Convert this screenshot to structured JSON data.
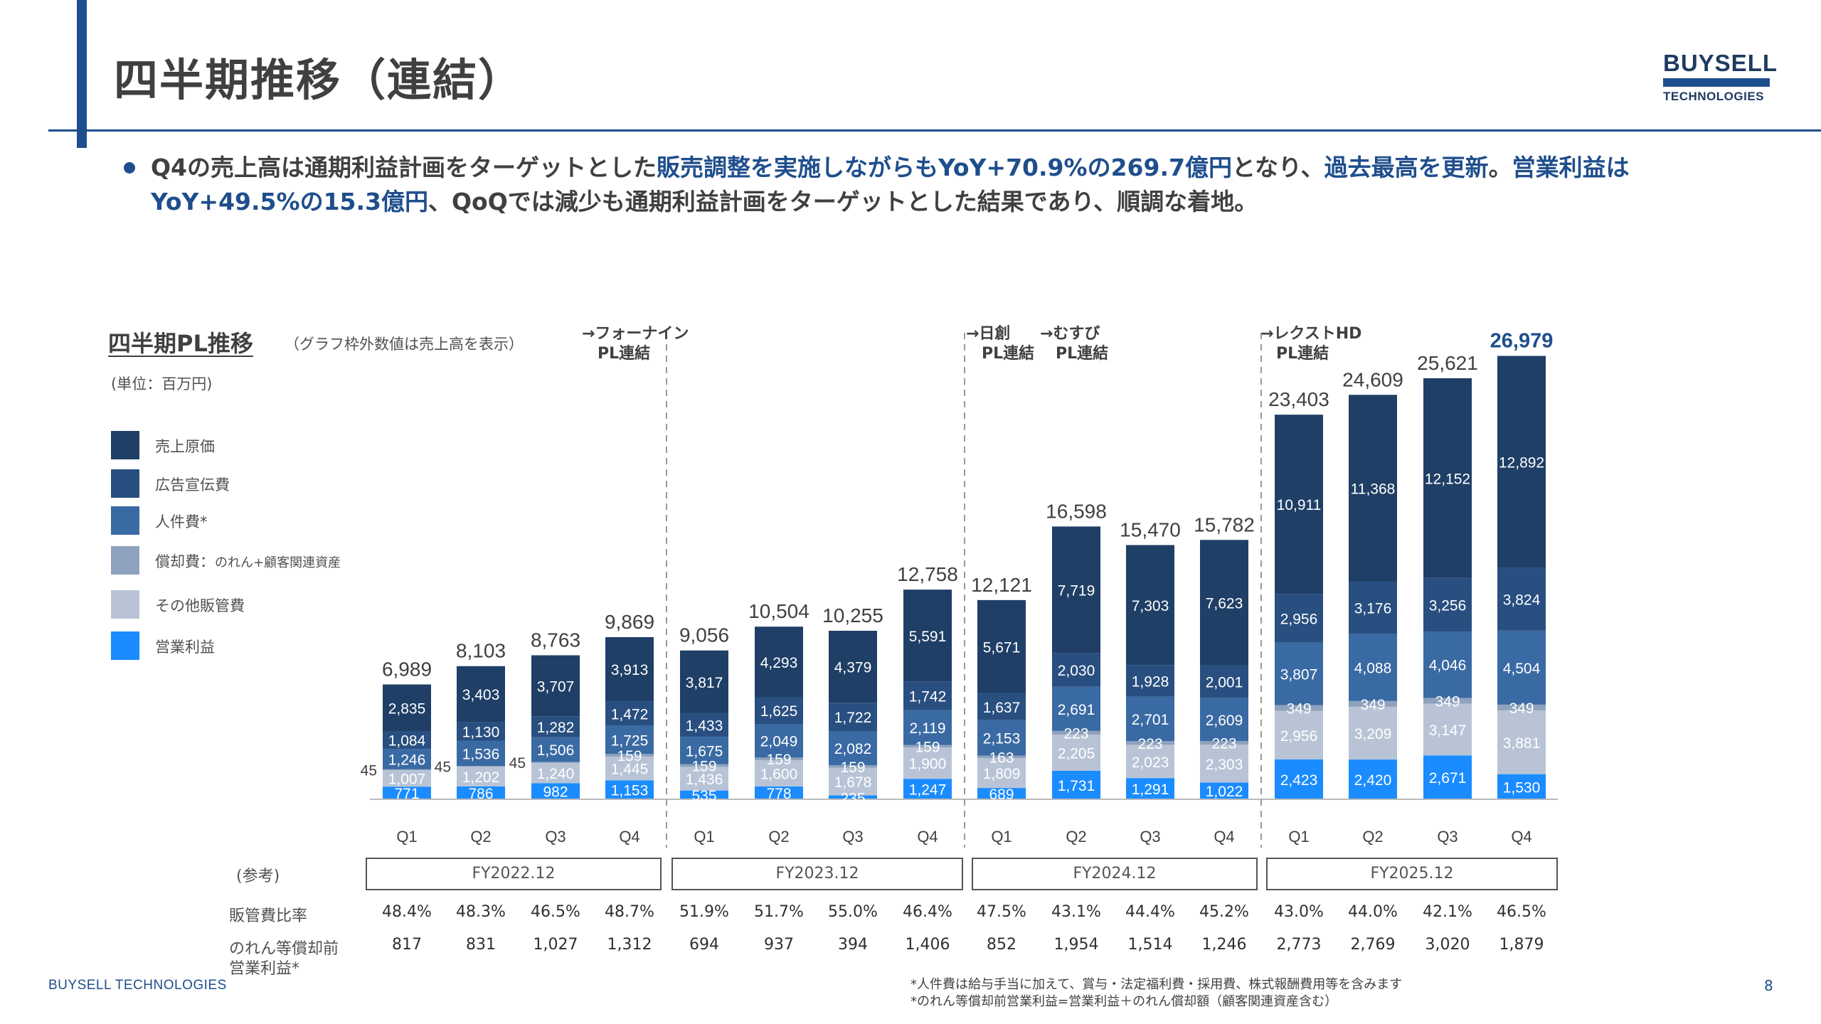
{
  "header": {
    "title": "四半期推移（連結）",
    "logo_line1": "BUYSELL",
    "logo_line2": "TECHNOLOGIES"
  },
  "summary": {
    "part1": "Q4の売上高は通期利益計画をターゲットとした",
    "part2": "販売調整を実施しながらもYoY+70.9%の269.7億円",
    "part3": "となり、",
    "part4": "過去最高を更新",
    "part5": "。",
    "part6": "営業利益は YoY+49.5%の15.3億円",
    "part7": "、QoQでは減少も通期利益計画をターゲットとした結果であり、順調な着地。"
  },
  "chart_heading": "四半期PL推移",
  "chart_note": "（グラフ枠外数値は売上高を表示）",
  "unit_label": "(単位：百万円)",
  "legend": [
    {
      "label": "売上原価",
      "color": "#1f3f66"
    },
    {
      "label": "広告宣伝費",
      "color": "#284f80"
    },
    {
      "label": "人件費*",
      "color": "#3a6aa3"
    },
    {
      "label": "償却費：",
      "label_small": "のれん+顧客関連資産",
      "color": "#8fa2bd"
    },
    {
      "label": "その他販管費",
      "color": "#b8c4d6"
    },
    {
      "label": "営業利益",
      "color": "#1a8cff"
    }
  ],
  "annotations": {
    "fournine": [
      "→フォーナイン",
      "PL連結"
    ],
    "nisso": [
      "→日創",
      "PL連結"
    ],
    "musubi": [
      "→むすび",
      "PL連結"
    ],
    "lext": [
      "→レクストHD",
      "PL連結"
    ]
  },
  "chart_data": {
    "type": "bar",
    "stacked": true,
    "categories": [
      "Q1",
      "Q2",
      "Q3",
      "Q4",
      "Q1",
      "Q2",
      "Q3",
      "Q4",
      "Q1",
      "Q2",
      "Q3",
      "Q4",
      "Q1",
      "Q2",
      "Q3",
      "Q4"
    ],
    "fiscal_years": [
      "FY2022.12",
      "FY2023.12",
      "FY2024.12",
      "FY2025.12"
    ],
    "totals": [
      6989,
      8103,
      8763,
      9869,
      9056,
      10504,
      10255,
      12758,
      12121,
      16598,
      15470,
      15782,
      23403,
      24609,
      25621,
      26979
    ],
    "series": [
      {
        "name": "営業利益",
        "values": [
          771,
          786,
          982,
          1153,
          535,
          778,
          235,
          1247,
          689,
          1731,
          1291,
          1022,
          2423,
          2420,
          2671,
          1530
        ]
      },
      {
        "name": "その他販管費",
        "values": [
          1007,
          1202,
          1240,
          1445,
          1436,
          1600,
          1678,
          1900,
          1809,
          2205,
          2023,
          2303,
          2956,
          3209,
          3147,
          3881
        ]
      },
      {
        "name": "償却費",
        "values": [
          45,
          45,
          45,
          159,
          159,
          159,
          159,
          159,
          163,
          223,
          223,
          223,
          349,
          349,
          349,
          349
        ]
      },
      {
        "name": "人件費*",
        "values": [
          1246,
          1536,
          1506,
          1725,
          1675,
          2049,
          2082,
          2119,
          2153,
          2691,
          2701,
          2609,
          3807,
          4088,
          4046,
          4504
        ]
      },
      {
        "name": "広告宣伝費",
        "values": [
          1084,
          1130,
          1282,
          1472,
          1433,
          1625,
          1722,
          1742,
          1637,
          2030,
          1928,
          2001,
          2956,
          3176,
          3256,
          3824
        ]
      },
      {
        "name": "売上原価",
        "values": [
          2835,
          3403,
          3707,
          3913,
          3817,
          4293,
          4379,
          5591,
          5671,
          7719,
          7303,
          7623,
          10911,
          11368,
          12152,
          12892
        ]
      }
    ],
    "highlight_last_total": true,
    "ylim": [
      0,
      27000
    ]
  },
  "reference": {
    "label": "(参考)",
    "sga_ratio_label": "販管費比率",
    "sga_ratio": [
      "48.4%",
      "48.3%",
      "46.5%",
      "48.7%",
      "51.9%",
      "51.7%",
      "55.0%",
      "46.4%",
      "47.5%",
      "43.1%",
      "44.4%",
      "45.2%",
      "43.0%",
      "44.0%",
      "42.1%",
      "46.5%"
    ],
    "pre_amort_label_1": "のれん等償却前",
    "pre_amort_label_2": "営業利益*",
    "pre_amort_op": [
      "817",
      "831",
      "1,027",
      "1,312",
      "694",
      "937",
      "394",
      "1,406",
      "852",
      "1,954",
      "1,514",
      "1,246",
      "2,773",
      "2,769",
      "3,020",
      "1,879"
    ]
  },
  "footer": {
    "brand": "BUYSELL TECHNOLOGIES",
    "note1": "*人件費は給与手当に加えて、賞与・法定福利費・採用費、株式報酬費用等を含みます",
    "note2": "*のれん等償却前営業利益=営業利益＋のれん償却額（顧客関連資産含む）",
    "page": "8"
  }
}
